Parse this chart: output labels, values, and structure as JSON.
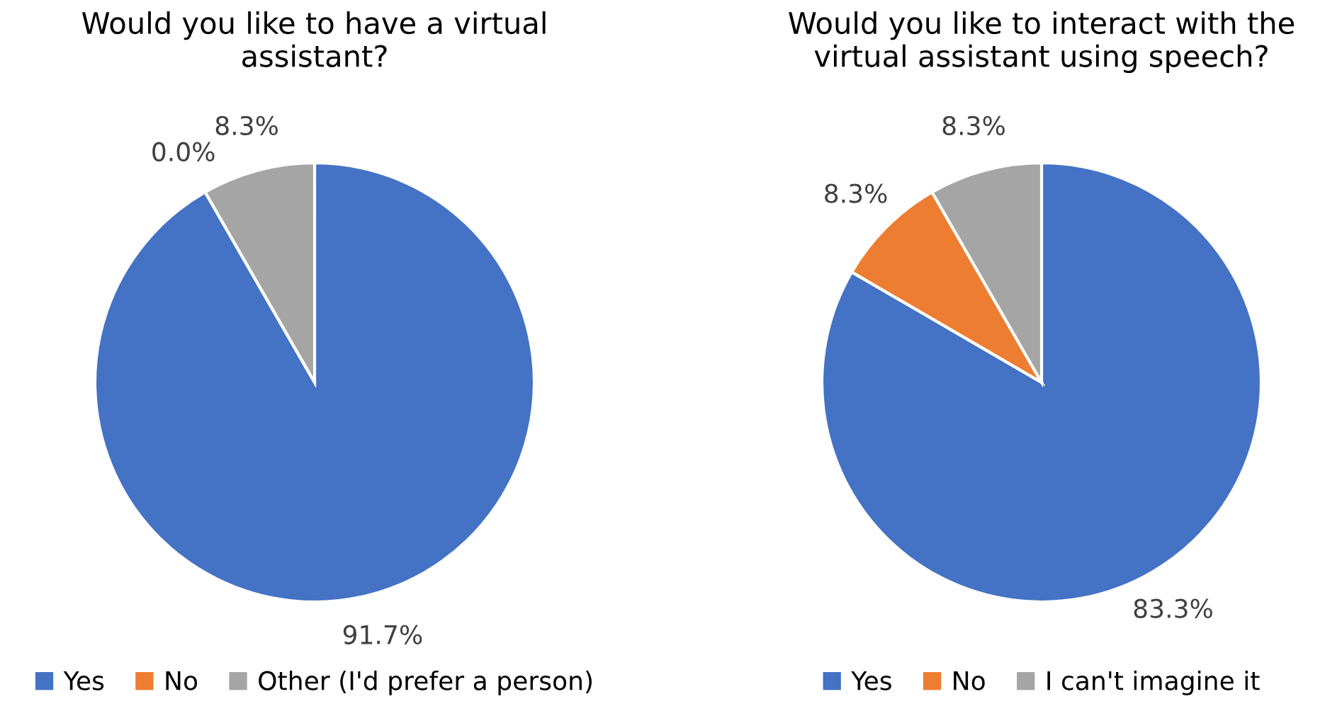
{
  "chart_data": [
    {
      "type": "pie",
      "title": "Would you like to have a virtual assistant?",
      "categories": [
        "Yes",
        "No",
        "Other (I'd prefer a person)"
      ],
      "values": [
        91.7,
        0.0,
        8.3
      ],
      "colors": [
        "#4472c4",
        "#ed7d31",
        "#a5a5a5"
      ],
      "value_labels": [
        "91.7%",
        "0.0%",
        "8.3%"
      ],
      "legend": "bottom"
    },
    {
      "type": "pie",
      "title": "Would you like to interact with the virtual assistant using speech?",
      "categories": [
        "Yes",
        "No",
        "I can't imagine it"
      ],
      "values": [
        83.3,
        8.3,
        8.3
      ],
      "colors": [
        "#4472c4",
        "#ed7d31",
        "#a5a5a5"
      ],
      "value_labels": [
        "83.3%",
        "8.3%",
        "8.3%"
      ],
      "legend": "bottom"
    }
  ]
}
